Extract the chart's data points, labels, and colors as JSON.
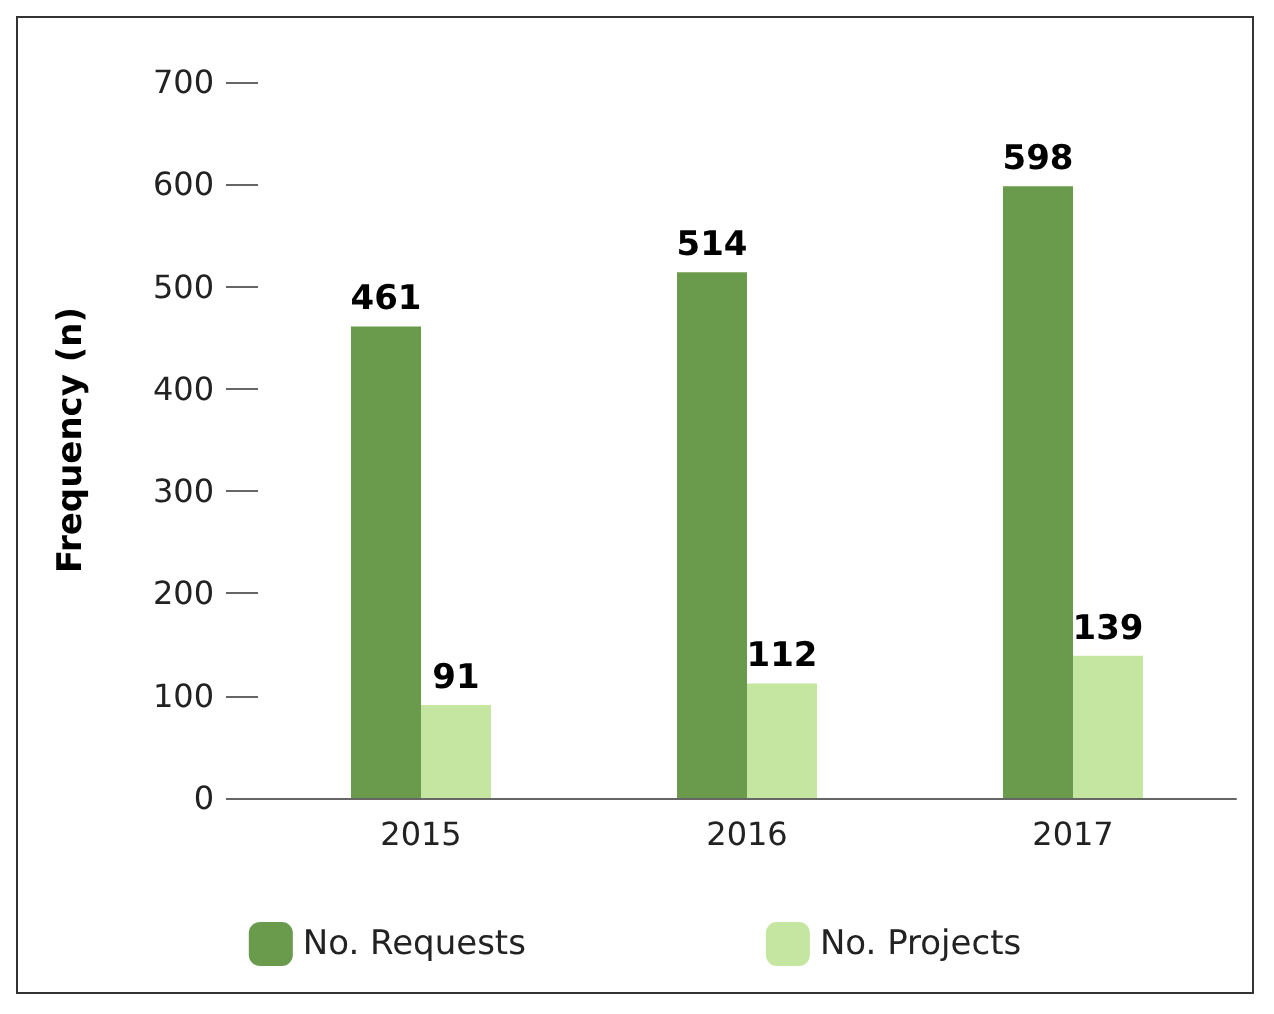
{
  "chart_data": {
    "type": "bar",
    "ylabel": "Frequency (n)",
    "categories": [
      "2015",
      "2016",
      "2017"
    ],
    "series": [
      {
        "name": "No. Requests",
        "color": "#6a9a4b",
        "values": [
          461,
          514,
          598
        ]
      },
      {
        "name": "No. Projects",
        "color": "#c5e6a1",
        "values": [
          91,
          112,
          139
        ]
      }
    ],
    "ylim": [
      0,
      700
    ],
    "yticks": [
      0,
      100,
      200,
      300,
      400,
      500,
      600,
      700
    ],
    "grid": false,
    "legend": "bottom",
    "data_labels": true
  }
}
